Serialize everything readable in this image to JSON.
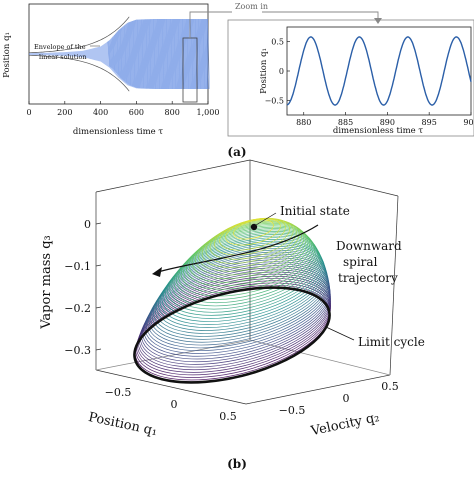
{
  "panel_a": {
    "label": "(a)",
    "zoom_label": "Zoom in",
    "left": {
      "ylabel": "Position q₁",
      "xlabel": "dimensionless time τ",
      "x_ticks": [
        "0",
        "200",
        "400",
        "600",
        "800",
        "1,000"
      ],
      "annotation_line1": "Envelope of the",
      "annotation_line2": "linear solution"
    },
    "right": {
      "ylabel": "Position q₁",
      "xlabel": "dimensionless time τ",
      "x_ticks": [
        "880",
        "885",
        "890",
        "895",
        "900"
      ],
      "y_ticks": [
        "0.5",
        "0",
        "−0.5"
      ]
    }
  },
  "panel_b": {
    "label": "(b)",
    "zlabel": "Vapor mass  q₃",
    "xlabel": "Position  q₁",
    "ylabel": "Velocity  q₂",
    "z_ticks": [
      "0",
      "−0.1",
      "−0.2",
      "−0.3"
    ],
    "x_ticks": [
      "−0.5",
      "0",
      "0.5"
    ],
    "y_ticks": [
      "−0.5",
      "0",
      "0.5"
    ],
    "callouts": {
      "initial": "Initial state",
      "spiral_1": "Downward",
      "spiral_2": "spiral",
      "spiral_3": "trajectory",
      "limit": "Limit cycle"
    }
  },
  "chart_data": [
    {
      "type": "line",
      "xlabel": "dimensionless time τ",
      "ylabel": "Position q₁",
      "xlim": [
        0,
        1000
      ],
      "ylim": [
        -0.8,
        0.8
      ],
      "series": [
        {
          "x": [
            0,
            100,
            200,
            300,
            400,
            450,
            500,
            550,
            600,
            700,
            800,
            900,
            1000
          ],
          "envelope_upper": [
            0.02,
            0.02,
            0.03,
            0.05,
            0.12,
            0.22,
            0.38,
            0.5,
            0.55,
            0.56,
            0.56,
            0.56,
            0.56
          ],
          "envelope_lower": [
            -0.02,
            -0.02,
            -0.03,
            -0.05,
            -0.12,
            -0.22,
            -0.38,
            -0.5,
            -0.55,
            -0.56,
            -0.56,
            -0.56,
            -0.56
          ]
        }
      ],
      "color": "#3b6fd6"
    },
    {
      "type": "line",
      "xlabel": "dimensionless time τ",
      "ylabel": "Position q₁",
      "xlim": [
        878,
        900
      ],
      "ylim": [
        -0.75,
        0.75
      ],
      "amplitude": 0.58,
      "period": 5.8,
      "color": "#2b5fa8"
    },
    {
      "type": "scatter",
      "description_type": "3d-spiral",
      "xlabel": "Position q₁",
      "ylabel": "Velocity q₂",
      "zlabel": "Vapor mass q₃",
      "xlim": [
        -0.75,
        0.75
      ],
      "ylim": [
        -0.75,
        0.75
      ],
      "zlim": [
        -0.36,
        0.03
      ],
      "initial_state": [
        0,
        0,
        0
      ],
      "limit_cycle_z": -0.32,
      "limit_cycle_radius": 0.7
    }
  ]
}
